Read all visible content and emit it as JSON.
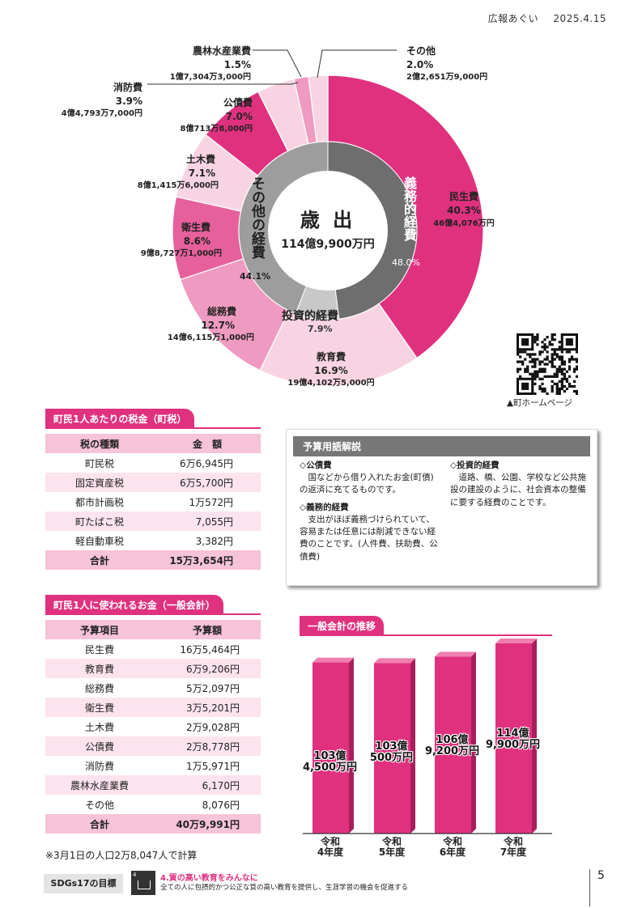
{
  "header": {
    "publication": "広報あぐい",
    "date": "2025.4.15"
  },
  "donut": {
    "center_title": "歳 出",
    "center_total": "114億9,900万円",
    "inner": [
      {
        "name": "義務的経費",
        "percent": "48.0%",
        "color": "#6e6e6e"
      },
      {
        "name": "投資的経費",
        "percent": "7.9%",
        "color": "#c8c8c8"
      },
      {
        "name": "その他の経費",
        "percent": "44.1%",
        "color": "#9d9d9d"
      }
    ],
    "outer": [
      {
        "name": "民生費",
        "percent": "40.3%",
        "amount": "46億4,076万円",
        "color": "#e0317f"
      },
      {
        "name": "教育費",
        "percent": "16.9%",
        "amount": "19億4,102万5,000円",
        "color": "#f8d4e3"
      },
      {
        "name": "総務費",
        "percent": "12.7%",
        "amount": "14億6,115万1,000円",
        "color": "#ef9ac0"
      },
      {
        "name": "衛生費",
        "percent": "8.6%",
        "amount": "9億8,727万1,000円",
        "color": "#e6609c"
      },
      {
        "name": "土木費",
        "percent": "7.1%",
        "amount": "8億1,415万6,000円",
        "color": "#f8d4e3"
      },
      {
        "name": "公債費",
        "percent": "7.0%",
        "amount": "8億713万8,000円",
        "color": "#e0317f"
      },
      {
        "name": "消防費",
        "percent": "3.9%",
        "amount": "4億4,793万7,000円",
        "color": "#f8d4e3"
      },
      {
        "name": "農林水産業費",
        "percent": "1.5%",
        "amount": "1億7,304万3,000円",
        "color": "#ef9ac0"
      },
      {
        "name": "その他",
        "percent": "2.0%",
        "amount": "2億2,651万9,000円",
        "color": "#f8d4e3"
      }
    ]
  },
  "qr": {
    "caption": "▲町ホームページ"
  },
  "tax_table": {
    "title": "町民1人あたりの税金（町税）",
    "headers": [
      "税の種類",
      "金　額"
    ],
    "rows": [
      [
        "町民税",
        "6万6,945円"
      ],
      [
        "固定資産税",
        "6万5,700円"
      ],
      [
        "都市計画税",
        "1万572円"
      ],
      [
        "町たばこ税",
        "7,055円"
      ],
      [
        "軽自動車税",
        "3,382円"
      ]
    ],
    "total": [
      "合計",
      "15万3,654円"
    ]
  },
  "spend_table": {
    "title": "町民1人に使われるお金（一般会計）",
    "headers": [
      "予算項目",
      "予算額"
    ],
    "rows": [
      [
        "民生費",
        "16万5,464円"
      ],
      [
        "教育費",
        "6万9,206円"
      ],
      [
        "総務費",
        "5万2,097円"
      ],
      [
        "衛生費",
        "3万5,201円"
      ],
      [
        "土木費",
        "2万9,028円"
      ],
      [
        "公債費",
        "2万8,778円"
      ],
      [
        "消防費",
        "1万5,971円"
      ],
      [
        "農林水産業費",
        "6,170円"
      ],
      [
        "その他",
        "8,076円"
      ]
    ],
    "total": [
      "合計",
      "40万9,991円"
    ],
    "note": "※3月1日の人口2万8,047人で計算"
  },
  "glossary": {
    "title": "予算用語解説",
    "items": [
      {
        "term": "◇公債費",
        "text": "国などから借り入れたお金(町債)の返済に充てるものです。"
      },
      {
        "term": "◇義務的経費",
        "text": "支出がほぼ義務づけられていて、容易または任意には削減できない経費のことです。(人件費、扶助費、公債費)"
      },
      {
        "term": "◇投資的経費",
        "text": "道路、橋、公園、学校など公共施設の建設のように、社会資本の整備に要する経費のことです。"
      }
    ]
  },
  "chart_data": {
    "type": "bar",
    "title": "一般会計の推移",
    "categories": [
      "令和4年度",
      "令和5年度",
      "令和6年度",
      "令和7年度"
    ],
    "values": [
      103.45,
      103.05,
      106.92,
      114.99
    ],
    "value_labels": [
      "103億4,500万円",
      "103億500万円",
      "106億9,200万円",
      "114億9,900万円"
    ],
    "bar_color": "#e0317f"
  },
  "footer": {
    "sdgs_label": "SDGs17の目標",
    "goal_title": "4.質の高い教育をみんなに",
    "goal_text": "全ての人に包摂的かつ公正な質の高い教育を提供し、生涯学習の機会を促進する",
    "page_number": "5"
  }
}
